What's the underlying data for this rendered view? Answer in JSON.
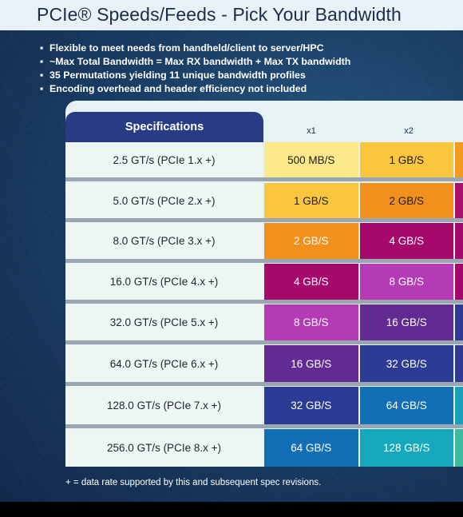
{
  "title": "PCIe® Speeds/Feeds - Pick Your Bandwidth",
  "bullets": [
    "Flexible to meet needs from handheld/client to server/HPC",
    "~Max Total Bandwidth = Max RX bandwidth + Max TX bandwidth",
    "35 Permutations yielding 11 unique bandwidth profiles",
    "Encoding overhead and header efficiency not included"
  ],
  "table": {
    "spec_header": "Specifications",
    "columns": [
      "x1",
      "x2"
    ],
    "rows": [
      {
        "spec": "2.5 GT/s (PCIe 1.x +)",
        "x1": "500 MB/S",
        "x2": "1 GB/S",
        "x1_bg": "#fcea8a",
        "x2_bg": "#f9c63e",
        "edge_bg": "#f39a1e",
        "x1_fg": "#1c1c1c",
        "x2_fg": "#1c1c1c"
      },
      {
        "spec": "5.0 GT/s (PCIe 2.x +)",
        "x1": "1 GB/S",
        "x2": "2 GB/S",
        "x1_bg": "#f9c63e",
        "x2_bg": "#f2901e",
        "edge_bg": "#a9126a",
        "x1_fg": "#1c1c1c",
        "x2_fg": "#1c1c1c"
      },
      {
        "spec": "8.0 GT/s (PCIe 3.x +)",
        "x1": "2 GB/S",
        "x2": "4 GB/S",
        "x1_bg": "#f2901e",
        "x2_bg": "#a5096b",
        "edge_bg": "#a5096b",
        "x1_fg": "#ffffff",
        "x2_fg": "#ffffff"
      },
      {
        "spec": "16.0 GT/s (PCIe 4.x +)",
        "x1": "4 GB/S",
        "x2": "8 GB/S",
        "x1_bg": "#a5096b",
        "x2_bg": "#b53ab5",
        "edge_bg": "#a5096b",
        "x1_fg": "#ffffff",
        "x2_fg": "#ffffff"
      },
      {
        "spec": "32.0 GT/s (PCIe 5.x +)",
        "x1": "8 GB/S",
        "x2": "16 GB/S",
        "x1_bg": "#b53ab5",
        "x2_bg": "#622b93",
        "edge_bg": "#2f3a90",
        "x1_fg": "#ffffff",
        "x2_fg": "#ffffff"
      },
      {
        "spec": "64.0 GT/s (PCIe 6.x +)",
        "x1": "16 GB/S",
        "x2": "32 GB/S",
        "x1_bg": "#622b93",
        "x2_bg": "#2c3b94",
        "edge_bg": "#2f3a90",
        "x1_fg": "#ffffff",
        "x2_fg": "#ffffff"
      },
      {
        "spec": "128.0 GT/s (PCIe 7.x +)",
        "x1": "32 GB/S",
        "x2": "64 GB/S",
        "x1_bg": "#2c3b94",
        "x2_bg": "#126fb5",
        "edge_bg": "#18a1b9",
        "x1_fg": "#ffffff",
        "x2_fg": "#ffffff"
      },
      {
        "spec": "256.0 GT/s (PCIe 8.x +)",
        "x1": "64 GB/S",
        "x2": "128 GB/S",
        "x1_bg": "#126fb5",
        "x2_bg": "#16a9bd",
        "edge_bg": "#3fba9e",
        "x1_fg": "#ffffff",
        "x2_fg": "#ffffff"
      }
    ]
  },
  "footnote": "+ = data rate supported by this and subsequent spec revisions."
}
